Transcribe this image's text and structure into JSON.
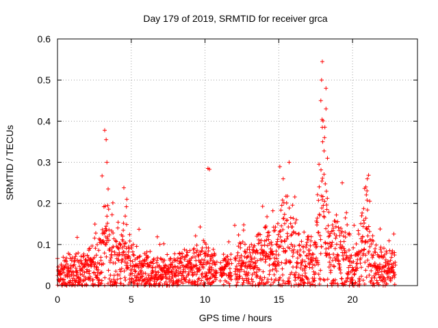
{
  "chart_data": {
    "type": "scatter",
    "title": "Day 179 of 2019, SRMTID for receiver grca",
    "xlabel": "GPS time / hours",
    "ylabel": "SRMTID / TECUs",
    "xlim": [
      0,
      24.4
    ],
    "ylim": [
      0,
      0.6
    ],
    "x_ticks": [
      0,
      5,
      10,
      15,
      20
    ],
    "y_ticks": [
      0,
      0.1,
      0.2,
      0.3,
      0.4,
      0.5,
      0.6
    ],
    "y_tick_labels": [
      "0",
      "0.1",
      "0.2",
      "0.3",
      "0.4",
      "0.5",
      "0.6"
    ],
    "grid": true,
    "marker": "+",
    "series_color": "#ff0000",
    "data_x_range": [
      0,
      22.9
    ],
    "gaps_hours": [
      [
        10.8,
        11.0
      ],
      [
        11.8,
        12.0
      ]
    ],
    "envelope": [
      {
        "t": 0.0,
        "base": 0.03,
        "spread": 0.05
      },
      {
        "t": 1.0,
        "base": 0.04,
        "spread": 0.07
      },
      {
        "t": 2.0,
        "base": 0.05,
        "spread": 0.08
      },
      {
        "t": 3.0,
        "base": 0.07,
        "spread": 0.12
      },
      {
        "t": 3.3,
        "base": 0.18,
        "spread": 0.2
      },
      {
        "t": 3.6,
        "base": 0.07,
        "spread": 0.08
      },
      {
        "t": 4.5,
        "base": 0.09,
        "spread": 0.12
      },
      {
        "t": 5.5,
        "base": 0.05,
        "spread": 0.06
      },
      {
        "t": 7.0,
        "base": 0.04,
        "spread": 0.05
      },
      {
        "t": 8.5,
        "base": 0.05,
        "spread": 0.05
      },
      {
        "t": 10.0,
        "base": 0.06,
        "spread": 0.07
      },
      {
        "t": 10.8,
        "base": 0.04,
        "spread": 0.04
      },
      {
        "t": 12.0,
        "base": 0.06,
        "spread": 0.06
      },
      {
        "t": 13.5,
        "base": 0.07,
        "spread": 0.06
      },
      {
        "t": 14.5,
        "base": 0.1,
        "spread": 0.1
      },
      {
        "t": 15.5,
        "base": 0.14,
        "spread": 0.12
      },
      {
        "t": 16.5,
        "base": 0.07,
        "spread": 0.09
      },
      {
        "t": 17.5,
        "base": 0.08,
        "spread": 0.1
      },
      {
        "t": 17.9,
        "base": 0.25,
        "spread": 0.28
      },
      {
        "t": 18.4,
        "base": 0.12,
        "spread": 0.14
      },
      {
        "t": 19.5,
        "base": 0.09,
        "spread": 0.08
      },
      {
        "t": 20.3,
        "base": 0.06,
        "spread": 0.06
      },
      {
        "t": 20.9,
        "base": 0.14,
        "spread": 0.13
      },
      {
        "t": 21.5,
        "base": 0.06,
        "spread": 0.06
      },
      {
        "t": 22.9,
        "base": 0.05,
        "spread": 0.06
      }
    ],
    "notable_points": [
      {
        "x": 3.2,
        "y": 0.378
      },
      {
        "x": 3.3,
        "y": 0.355
      },
      {
        "x": 3.35,
        "y": 0.3
      },
      {
        "x": 4.5,
        "y": 0.238
      },
      {
        "x": 4.7,
        "y": 0.21
      },
      {
        "x": 10.2,
        "y": 0.285
      },
      {
        "x": 10.3,
        "y": 0.283
      },
      {
        "x": 15.7,
        "y": 0.3
      },
      {
        "x": 15.3,
        "y": 0.26
      },
      {
        "x": 17.95,
        "y": 0.545
      },
      {
        "x": 17.9,
        "y": 0.5
      },
      {
        "x": 17.85,
        "y": 0.45
      },
      {
        "x": 18.2,
        "y": 0.48
      },
      {
        "x": 18.2,
        "y": 0.43
      },
      {
        "x": 17.95,
        "y": 0.385
      },
      {
        "x": 18.1,
        "y": 0.36
      },
      {
        "x": 18.3,
        "y": 0.31
      },
      {
        "x": 21.0,
        "y": 0.26
      },
      {
        "x": 20.9,
        "y": 0.24
      },
      {
        "x": 19.3,
        "y": 0.25
      }
    ]
  }
}
